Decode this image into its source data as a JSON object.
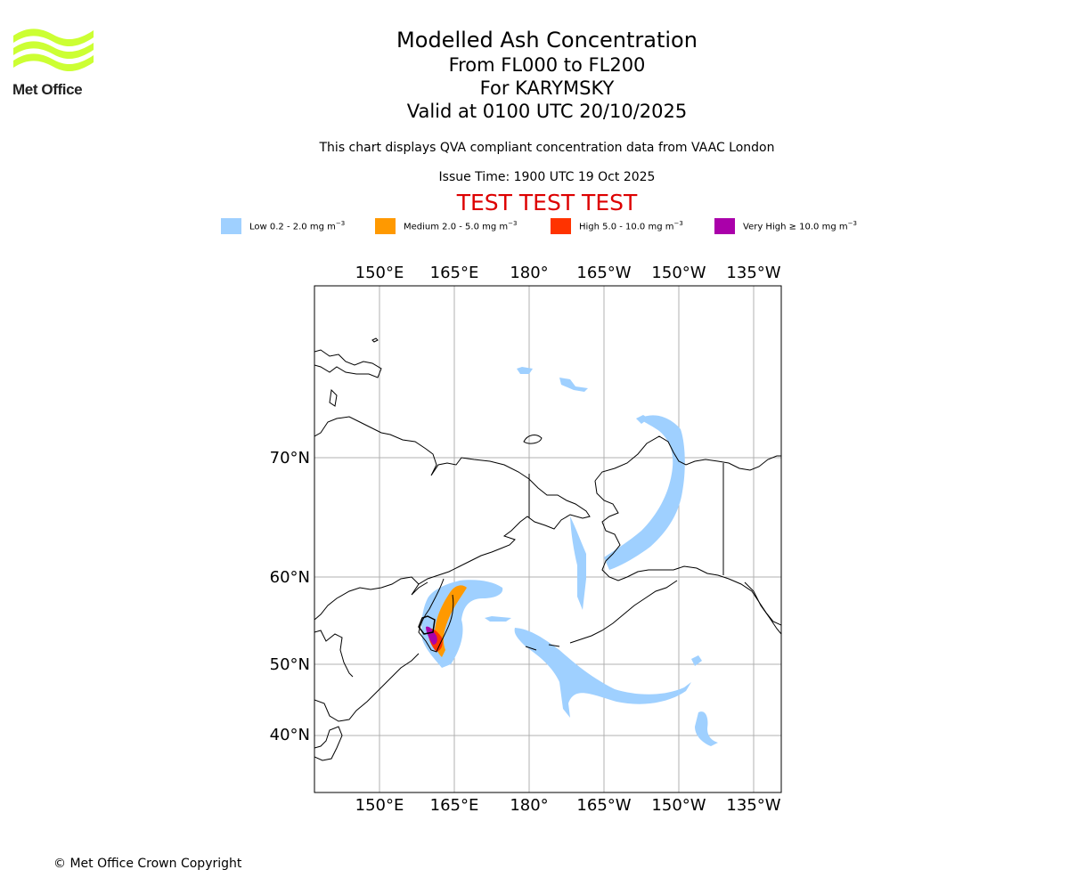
{
  "logo": {
    "text": "Met Office",
    "color": "#ccff33",
    "icon": "met-office-wave-logo"
  },
  "title": {
    "main": "Modelled Ash Concentration",
    "levels": "From FL000 to FL200",
    "volcano": "For KARYMSKY",
    "valid": "Valid at 0100 UTC 20/10/2025"
  },
  "note": "This chart displays QVA compliant concentration data from VAAC London",
  "issue_time": "Issue Time: 1900 UTC 19 Oct 2025",
  "test_banner": "TEST TEST TEST",
  "legend": [
    {
      "label": "Low 0.2 - 2.0 mg m",
      "color": "#9fd0ff"
    },
    {
      "label": "Medium 2.0 - 5.0 mg m",
      "color": "#ff9900"
    },
    {
      "label": "High 5.0 - 10.0 mg m",
      "color": "#ff3300"
    },
    {
      "label": "Very High ≥ 10.0 mg m",
      "color": "#aa00aa"
    }
  ],
  "legend_unit_exponent": "−3",
  "map": {
    "lon_labels": [
      "150°E",
      "165°E",
      "180°",
      "165°W",
      "150°W",
      "135°W"
    ],
    "lat_labels": [
      "70°N",
      "60°N",
      "50°N",
      "40°N"
    ],
    "grid": true,
    "coastline_color": "#000000",
    "grid_color": "#b0b0b0"
  },
  "copyright": "© Met Office Crown Copyright"
}
